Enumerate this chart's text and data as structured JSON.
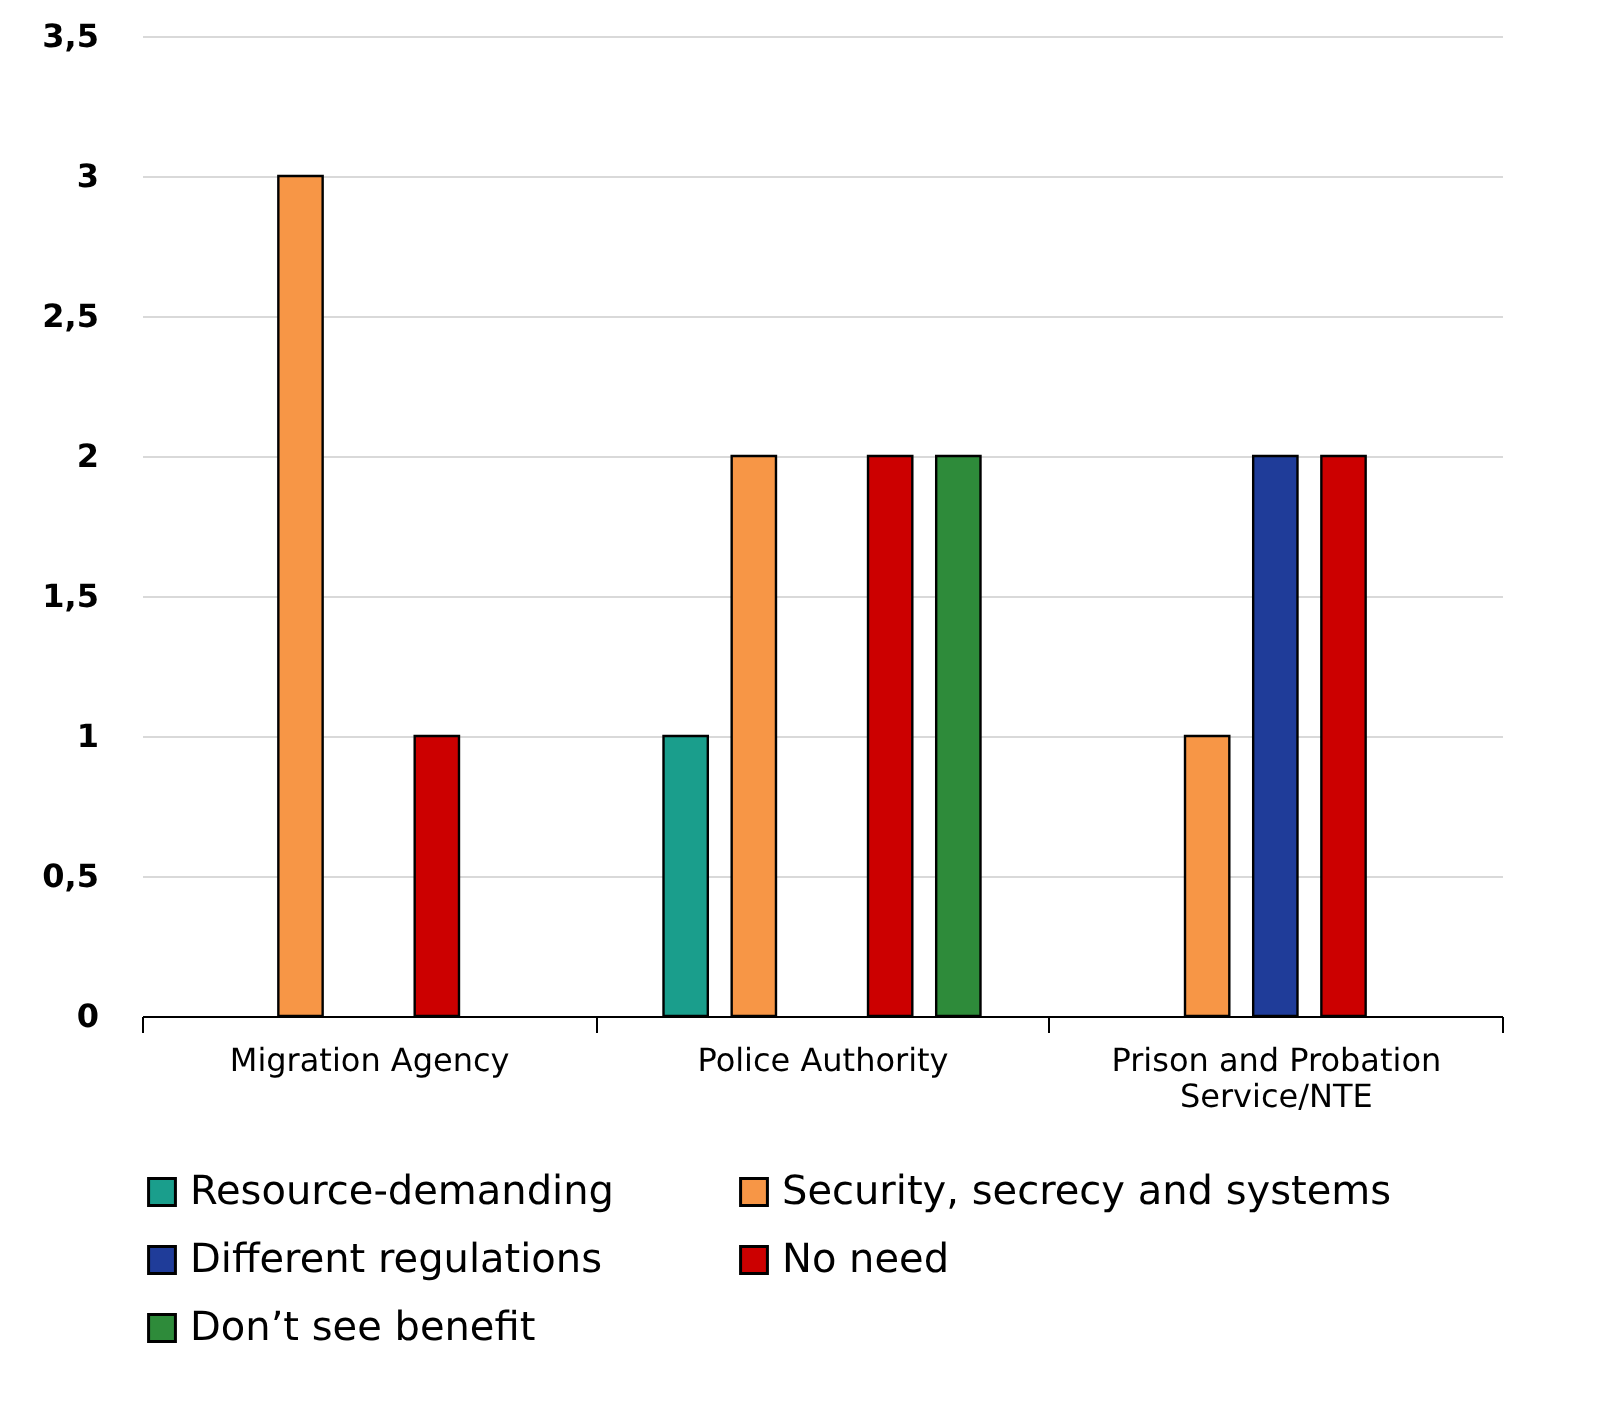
{
  "chart_data": {
    "type": "bar",
    "categories": [
      "Migration Agency",
      "Police Authority",
      "Prison and Probation Service/NTE"
    ],
    "series": [
      {
        "name": "Resource-demanding",
        "color": "#1a9e8c",
        "values": [
          null,
          1,
          null
        ]
      },
      {
        "name": "Security, secrecy and systems",
        "color": "#f79646",
        "values": [
          3,
          2,
          1
        ]
      },
      {
        "name": "Different regulations",
        "color": "#1f3c99",
        "values": [
          null,
          null,
          2
        ]
      },
      {
        "name": "No need",
        "color": "#cc0000",
        "values": [
          1,
          2,
          2
        ]
      },
      {
        "name": "Don’t see benefit",
        "color": "#2e8b3a",
        "values": [
          null,
          2,
          null
        ]
      }
    ],
    "ylim": [
      0,
      3.5
    ],
    "yticks": [
      0,
      {
        "value": 0.5,
        "label": "0,5"
      },
      1,
      {
        "value": 1.5,
        "label": "1,5"
      },
      2,
      {
        "value": 2.5,
        "label": "2,5"
      },
      3,
      {
        "value": 3.5,
        "label": "3,5"
      }
    ],
    "grid": "y",
    "legend": "bottom"
  }
}
